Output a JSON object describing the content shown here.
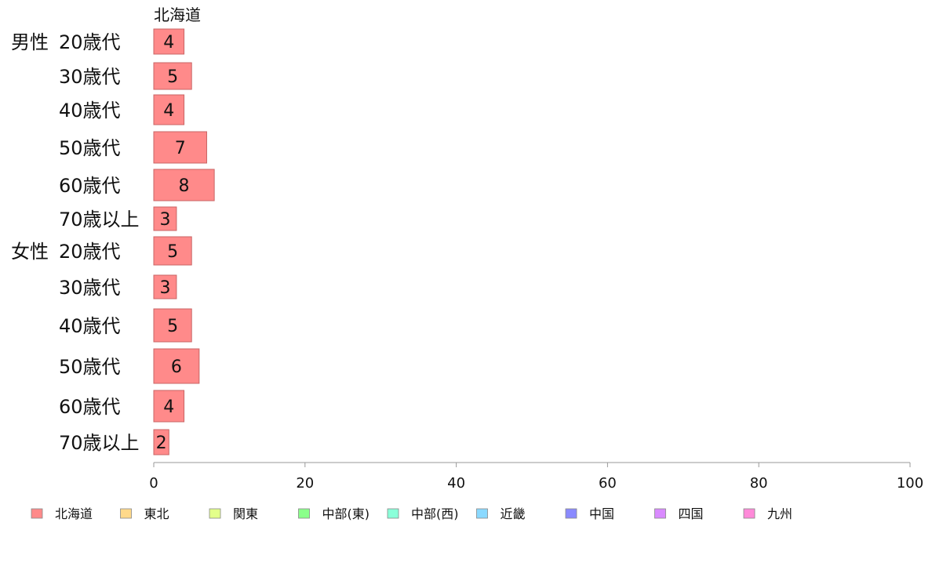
{
  "chart_data": {
    "type": "bar",
    "orientation": "horizontal",
    "column_header": "北海道",
    "groups": [
      {
        "label": "男性",
        "categories": [
          "20歳代",
          "30歳代",
          "40歳代",
          "50歳代",
          "60歳代",
          "70歳以上"
        ],
        "values": [
          4,
          5,
          4,
          7,
          8,
          3
        ]
      },
      {
        "label": "女性",
        "categories": [
          "20歳代",
          "30歳代",
          "40歳代",
          "50歳代",
          "60歳代",
          "70歳以上"
        ],
        "values": [
          5,
          3,
          5,
          6,
          4,
          2
        ]
      }
    ],
    "xlim": [
      0,
      100
    ],
    "xticks": [
      0,
      20,
      40,
      60,
      80,
      100
    ],
    "bar_color": "#ff8a8a",
    "bar_stroke": "#c86464",
    "grid": false,
    "legend_position": "bottom",
    "legend": [
      {
        "label": "北海道",
        "color": "#ff8a8a"
      },
      {
        "label": "東北",
        "color": "#ffd98a"
      },
      {
        "label": "関東",
        "color": "#e3ff8a"
      },
      {
        "label": "中部(東)",
        "color": "#8aff8a"
      },
      {
        "label": "中部(西)",
        "color": "#8affd9"
      },
      {
        "label": "近畿",
        "color": "#8ad9ff"
      },
      {
        "label": "中国",
        "color": "#8a8aff"
      },
      {
        "label": "四国",
        "color": "#d98aff"
      },
      {
        "label": "九州",
        "color": "#ff8ad9"
      }
    ]
  }
}
